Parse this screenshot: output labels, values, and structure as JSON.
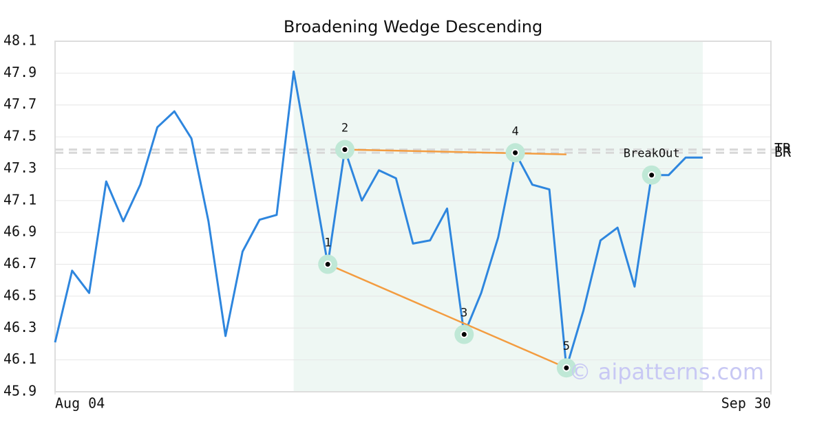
{
  "chart_data": {
    "type": "line",
    "title": "Broadening Wedge Descending",
    "x": [
      0,
      1,
      2,
      3,
      4,
      5,
      6,
      7,
      8,
      9,
      10,
      11,
      12,
      13,
      14,
      15,
      16,
      17,
      18,
      19,
      20,
      21,
      22,
      23,
      24,
      25,
      26,
      27,
      28,
      29,
      30,
      31,
      32,
      33,
      34,
      35,
      36,
      37,
      38
    ],
    "values": [
      46.21,
      46.66,
      46.52,
      47.22,
      46.97,
      47.2,
      47.56,
      47.66,
      47.49,
      46.97,
      46.25,
      46.78,
      46.98,
      47.01,
      47.91,
      47.31,
      46.7,
      47.42,
      47.1,
      47.29,
      47.24,
      46.83,
      46.85,
      47.05,
      46.26,
      46.52,
      46.87,
      47.4,
      47.2,
      47.17,
      46.05,
      46.41,
      46.85,
      46.93,
      46.56,
      47.26,
      47.26,
      47.37,
      47.37
    ],
    "color": "#2e86de",
    "xlim": [
      0,
      42
    ],
    "xticks": [
      {
        "value": 0,
        "label": "Aug 04"
      },
      {
        "value": 42,
        "label": "Sep 30"
      }
    ],
    "ylim": [
      45.9,
      48.1
    ],
    "yticks": [
      45.9,
      46.1,
      46.3,
      46.5,
      46.7,
      46.9,
      47.1,
      47.3,
      47.5,
      47.7,
      47.9,
      48.1
    ],
    "grid": true,
    "shaded_range": [
      14,
      38
    ],
    "pattern_points": [
      {
        "label": "1",
        "x": 16,
        "value": 46.7
      },
      {
        "label": "2",
        "x": 17,
        "value": 47.42
      },
      {
        "label": "3",
        "x": 24,
        "value": 46.26
      },
      {
        "label": "4",
        "x": 27,
        "value": 47.4
      },
      {
        "label": "5",
        "x": 30,
        "value": 46.05
      },
      {
        "label": "BreakOut",
        "x": 35,
        "value": 47.26
      }
    ],
    "trend_lines": [
      {
        "x": [
          17,
          30
        ],
        "values": [
          47.42,
          47.39
        ],
        "color": "#f39c40"
      },
      {
        "x": [
          16,
          30
        ],
        "values": [
          46.7,
          46.05
        ],
        "color": "#f39c40"
      }
    ],
    "levels": [
      {
        "label": "TR",
        "value": 47.42
      },
      {
        "label": "BR",
        "value": 47.4
      }
    ],
    "watermark": "© aipatterns.com"
  }
}
